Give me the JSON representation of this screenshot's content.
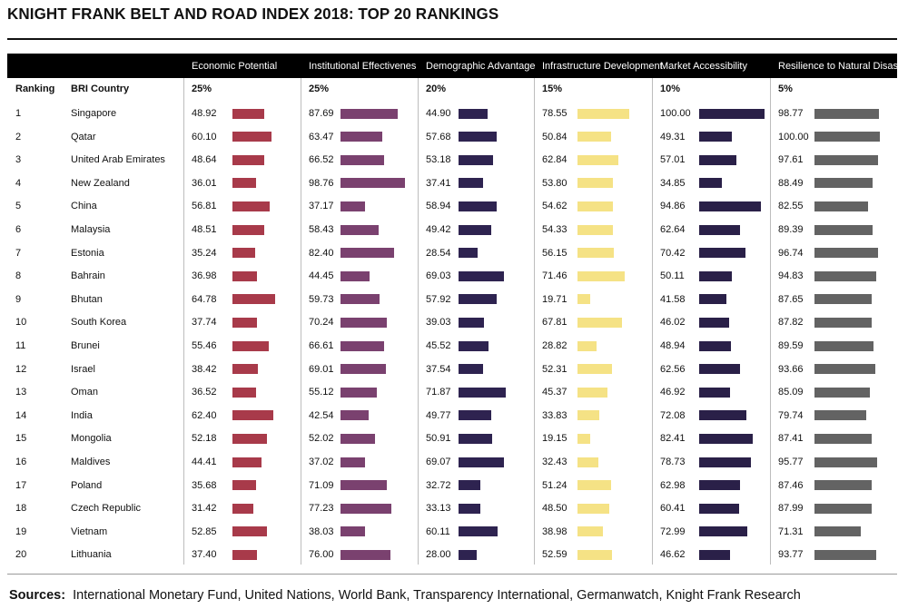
{
  "title": "KNIGHT FRANK BELT AND ROAD INDEX 2018: TOP 20 RANKINGS",
  "columns": {
    "ranking": "Ranking",
    "country": "BRI Country"
  },
  "sources_label": "Sources:",
  "sources_text": "International Monetary Fund, United Nations, World Bank, Transparency International, Germanwatch, Knight Frank Research",
  "chart_data": {
    "type": "table",
    "title": "KNIGHT FRANK BELT AND ROAD INDEX 2018: TOP 20 RANKINGS",
    "bar_scale_max": 100,
    "metrics": [
      {
        "name": "Economic Potential",
        "weight": "25%",
        "color": "#a83a4a"
      },
      {
        "name": "Institutional Effectivenes",
        "weight": "25%",
        "color": "#7a416f"
      },
      {
        "name": "Demographic Advantage",
        "weight": "20%",
        "color": "#2e2350"
      },
      {
        "name": "Infrastructure Development",
        "weight": "15%",
        "color": "#f5e285"
      },
      {
        "name": "Market Accessibility",
        "weight": "10%",
        "color": "#2a2048"
      },
      {
        "name": "Resilience to Natural Disasters",
        "weight": "5%",
        "color": "#636363"
      }
    ],
    "rows": [
      {
        "rank": "1",
        "country": "Singapore",
        "values": [
          "48.92",
          "87.69",
          "44.90",
          "78.55",
          "100.00",
          "98.77"
        ]
      },
      {
        "rank": "2",
        "country": "Qatar",
        "values": [
          "60.10",
          "63.47",
          "57.68",
          "50.84",
          "49.31",
          "100.00"
        ]
      },
      {
        "rank": "3",
        "country": "United Arab Emirates",
        "values": [
          "48.64",
          "66.52",
          "53.18",
          "62.84",
          "57.01",
          "97.61"
        ]
      },
      {
        "rank": "4",
        "country": "New Zealand",
        "values": [
          "36.01",
          "98.76",
          "37.41",
          "53.80",
          "34.85",
          "88.49"
        ]
      },
      {
        "rank": "5",
        "country": "China",
        "values": [
          "56.81",
          "37.17",
          "58.94",
          "54.62",
          "94.86",
          "82.55"
        ]
      },
      {
        "rank": "6",
        "country": "Malaysia",
        "values": [
          "48.51",
          "58.43",
          "49.42",
          "54.33",
          "62.64",
          "89.39"
        ]
      },
      {
        "rank": "7",
        "country": "Estonia",
        "values": [
          "35.24",
          "82.40",
          "28.54",
          "56.15",
          "70.42",
          "96.74"
        ]
      },
      {
        "rank": "8",
        "country": "Bahrain",
        "values": [
          "36.98",
          "44.45",
          "69.03",
          "71.46",
          "50.11",
          "94.83"
        ]
      },
      {
        "rank": "9",
        "country": "Bhutan",
        "values": [
          "64.78",
          "59.73",
          "57.92",
          "19.71",
          "41.58",
          "87.65"
        ]
      },
      {
        "rank": "10",
        "country": "South Korea",
        "values": [
          "37.74",
          "70.24",
          "39.03",
          "67.81",
          "46.02",
          "87.82"
        ]
      },
      {
        "rank": "11",
        "country": "Brunei",
        "values": [
          "55.46",
          "66.61",
          "45.52",
          "28.82",
          "48.94",
          "89.59"
        ]
      },
      {
        "rank": "12",
        "country": "Israel",
        "values": [
          "38.42",
          "69.01",
          "37.54",
          "52.31",
          "62.56",
          "93.66"
        ]
      },
      {
        "rank": "13",
        "country": "Oman",
        "values": [
          "36.52",
          "55.12",
          "71.87",
          "45.37",
          "46.92",
          "85.09"
        ]
      },
      {
        "rank": "14",
        "country": "India",
        "values": [
          "62.40",
          "42.54",
          "49.77",
          "33.83",
          "72.08",
          "79.74"
        ]
      },
      {
        "rank": "15",
        "country": "Mongolia",
        "values": [
          "52.18",
          "52.02",
          "50.91",
          "19.15",
          "82.41",
          "87.41"
        ]
      },
      {
        "rank": "16",
        "country": "Maldives",
        "values": [
          "44.41",
          "37.02",
          "69.07",
          "32.43",
          "78.73",
          "95.77"
        ]
      },
      {
        "rank": "17",
        "country": "Poland",
        "values": [
          "35.68",
          "71.09",
          "32.72",
          "51.24",
          "62.98",
          "87.46"
        ]
      },
      {
        "rank": "18",
        "country": "Czech Republic",
        "values": [
          "31.42",
          "77.23",
          "33.13",
          "48.50",
          "60.41",
          "87.99"
        ]
      },
      {
        "rank": "19",
        "country": "Vietnam",
        "values": [
          "52.85",
          "38.03",
          "60.11",
          "38.98",
          "72.99",
          "71.31"
        ]
      },
      {
        "rank": "20",
        "country": "Lithuania",
        "values": [
          "37.40",
          "76.00",
          "28.00",
          "52.59",
          "46.62",
          "93.77"
        ]
      }
    ]
  }
}
